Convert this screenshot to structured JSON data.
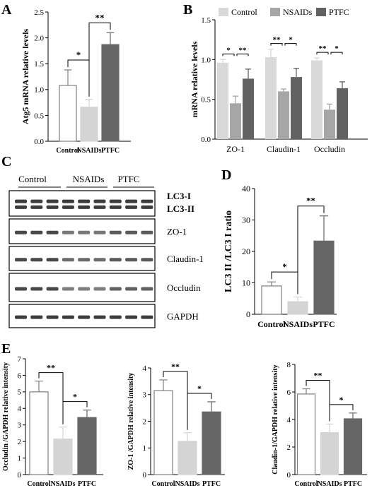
{
  "panels": {
    "A": {
      "letter": "A"
    },
    "B": {
      "letter": "B"
    },
    "C": {
      "letter": "C"
    },
    "D": {
      "letter": "D"
    },
    "E": {
      "letter": "E"
    }
  },
  "colors": {
    "control_fill": "#ffffff",
    "control_stroke": "#7f7f7f",
    "nsaids_fill": "#d4d4d4",
    "ptfc_fill": "#666666",
    "b_control": "#d9d9d9",
    "b_nsaids": "#a6a6a6",
    "b_ptfc": "#626262"
  },
  "chart_data": [
    {
      "id": "A",
      "type": "bar",
      "categories": [
        "Control",
        "NSAIDs",
        "PTFC"
      ],
      "values": [
        1.08,
        0.66,
        1.87
      ],
      "errors": [
        0.3,
        0.15,
        0.23
      ],
      "ylabel": "Atg5 mRNA relative levels",
      "ylim": [
        0,
        2.5
      ],
      "yticks": [
        "0.0",
        "0.5",
        "1.0",
        "1.5",
        "2.0",
        "2.5"
      ],
      "significance": [
        {
          "from": 0,
          "to": 1,
          "label": "*"
        },
        {
          "from": 1,
          "to": 2,
          "label": "**"
        }
      ]
    },
    {
      "id": "B",
      "type": "bar",
      "categories": [
        "ZO-1",
        "Claudin-1",
        "Occludin"
      ],
      "series": [
        {
          "name": "Control",
          "values": [
            0.96,
            1.03,
            0.99
          ],
          "errors": [
            0.04,
            0.1,
            0.03
          ]
        },
        {
          "name": "NSAIDs",
          "values": [
            0.45,
            0.6,
            0.37
          ],
          "errors": [
            0.09,
            0.03,
            0.07
          ]
        },
        {
          "name": "PTFC",
          "values": [
            0.76,
            0.78,
            0.64
          ],
          "errors": [
            0.12,
            0.11,
            0.08
          ]
        }
      ],
      "ylabel": "mRNA relative levels",
      "ylim": [
        0,
        1.5
      ],
      "yticks": [
        "0.0",
        "0.5",
        "1.0",
        "1.5"
      ],
      "legend_position": "top",
      "significance": [
        {
          "group": 0,
          "from": 0,
          "to": 1,
          "label": "*"
        },
        {
          "group": 0,
          "from": 1,
          "to": 2,
          "label": "**"
        },
        {
          "group": 1,
          "from": 0,
          "to": 1,
          "label": "**"
        },
        {
          "group": 1,
          "from": 1,
          "to": 2,
          "label": "*"
        },
        {
          "group": 2,
          "from": 0,
          "to": 1,
          "label": "**"
        },
        {
          "group": 2,
          "from": 1,
          "to": 2,
          "label": "*"
        }
      ]
    },
    {
      "id": "D",
      "type": "bar",
      "categories": [
        "Control",
        "NSAIDs",
        "PTFC"
      ],
      "values": [
        9,
        4,
        23.3
      ],
      "errors": [
        1.3,
        1.5,
        8
      ],
      "ylabel": "LC3 II /LC3 I ratio",
      "ylim": [
        0,
        40
      ],
      "yticks": [
        "0",
        "10",
        "20",
        "30",
        "40"
      ],
      "significance": [
        {
          "from": 0,
          "to": 1,
          "label": "*"
        },
        {
          "from": 1,
          "to": 2,
          "label": "**"
        }
      ]
    },
    {
      "id": "E1",
      "type": "bar",
      "categories": [
        "Control",
        "NSAIDs",
        "PTFC"
      ],
      "values": [
        5.0,
        2.15,
        3.45
      ],
      "errors": [
        0.65,
        0.72,
        0.45
      ],
      "ylabel": "Occludin /GAPDH relative intensity",
      "ylim": [
        0,
        7
      ],
      "yticks": [
        "0",
        "1",
        "2",
        "3",
        "4",
        "5",
        "6",
        "7"
      ],
      "significance": [
        {
          "from": 0,
          "to": 1,
          "label": "**"
        },
        {
          "from": 1,
          "to": 2,
          "label": "*"
        }
      ]
    },
    {
      "id": "E2",
      "type": "bar",
      "categories": [
        "Control",
        "NSAIDs",
        "PTFC"
      ],
      "values": [
        3.15,
        1.25,
        2.35
      ],
      "errors": [
        0.4,
        0.32,
        0.38
      ],
      "ylabel": "ZO-1 /GAPDH relative intensity",
      "ylim": [
        0,
        4
      ],
      "yticks": [
        "0",
        "1",
        "2",
        "3",
        "4"
      ],
      "significance": [
        {
          "from": 0,
          "to": 1,
          "label": "**"
        },
        {
          "from": 1,
          "to": 2,
          "label": "*"
        }
      ]
    },
    {
      "id": "E3",
      "type": "bar",
      "categories": [
        "Control",
        "NSAIDs",
        "PTFC"
      ],
      "values": [
        5.85,
        3.05,
        4.05
      ],
      "errors": [
        0.38,
        0.62,
        0.42
      ],
      "ylabel": "Claudin-1/GAPDH relative intensity",
      "ylim": [
        0,
        8
      ],
      "yticks": [
        "0",
        "2",
        "4",
        "6",
        "8"
      ],
      "significance": [
        {
          "from": 0,
          "to": 1,
          "label": "**"
        },
        {
          "from": 1,
          "to": 2,
          "label": "*"
        }
      ]
    }
  ],
  "western_blot": {
    "groups": [
      "Control",
      "NSAIDs",
      "PTFC"
    ],
    "lanes_per_group": 3,
    "rows": [
      {
        "label": "LC3-I",
        "label2": "LC3-II",
        "intensity": [
          1,
          1,
          1,
          1,
          1,
          1,
          1,
          1,
          1
        ]
      },
      {
        "label": "ZO-1",
        "intensity": [
          0.9,
          0.9,
          0.9,
          0.5,
          0.5,
          0.5,
          0.75,
          0.75,
          0.75
        ]
      },
      {
        "label": "Claudin-1",
        "intensity": [
          0.9,
          0.9,
          0.9,
          0.6,
          0.6,
          0.6,
          0.75,
          0.75,
          0.75
        ]
      },
      {
        "label": "Occludin",
        "intensity": [
          0.9,
          0.9,
          0.9,
          0.45,
          0.45,
          0.45,
          0.7,
          0.7,
          0.7
        ]
      },
      {
        "label": "GAPDH",
        "intensity": [
          1,
          1,
          1,
          1,
          1,
          1,
          1,
          1,
          1
        ]
      }
    ]
  }
}
